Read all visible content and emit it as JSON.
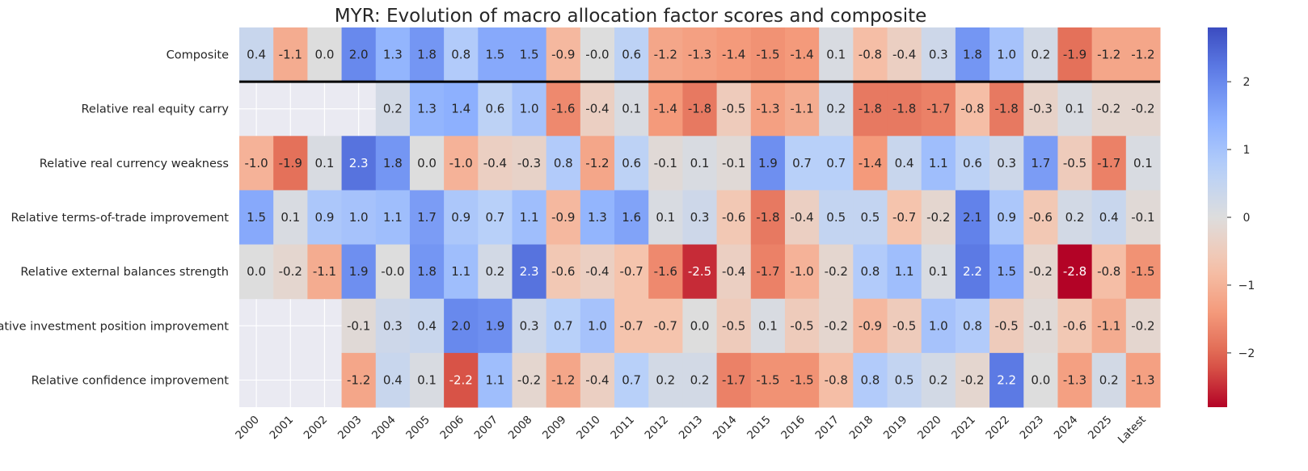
{
  "chart_data": {
    "type": "heatmap",
    "title": "MYR: Evolution of macro allocation factor scores and composite",
    "xlabel": "",
    "ylabel": "",
    "colormap": "coolwarm_r",
    "vmin": -2.8,
    "vmax": 2.8,
    "colorbar_ticks": [
      "2",
      "1",
      "0",
      "−1",
      "−2"
    ],
    "colorbar_tick_values": [
      2,
      1,
      0,
      -1,
      -2
    ],
    "x_categories": [
      "2000",
      "2001",
      "2002",
      "2003",
      "2004",
      "2005",
      "2006",
      "2007",
      "2008",
      "2009",
      "2010",
      "2011",
      "2012",
      "2013",
      "2014",
      "2015",
      "2016",
      "2017",
      "2018",
      "2019",
      "2020",
      "2021",
      "2022",
      "2023",
      "2024",
      "2025",
      "Latest"
    ],
    "rows": [
      {
        "name": "Composite",
        "values": [
          0.4,
          -1.1,
          0.0,
          2.0,
          1.3,
          1.8,
          0.8,
          1.5,
          1.5,
          -0.9,
          -0.0,
          0.6,
          -1.2,
          -1.3,
          -1.4,
          -1.5,
          -1.4,
          0.1,
          -0.8,
          -0.4,
          0.3,
          1.8,
          1.0,
          0.2,
          -1.9,
          -1.2,
          -1.2
        ],
        "labels": [
          "0.4",
          "-1.1",
          "0.0",
          "2.0",
          "1.3",
          "1.8",
          "0.8",
          "1.5",
          "1.5",
          "-0.9",
          "-0.0",
          "0.6",
          "-1.2",
          "-1.3",
          "-1.4",
          "-1.5",
          "-1.4",
          "0.1",
          "-0.8",
          "-0.4",
          "0.3",
          "1.8",
          "1.0",
          "0.2",
          "-1.9",
          "-1.2",
          "-1.2"
        ]
      },
      {
        "name": "Relative real equity carry",
        "values": [
          null,
          null,
          null,
          null,
          0.2,
          1.3,
          1.4,
          0.6,
          1.0,
          -1.6,
          -0.4,
          0.1,
          -1.4,
          -1.8,
          -0.5,
          -1.3,
          -1.1,
          0.2,
          -1.8,
          -1.8,
          -1.7,
          -0.8,
          -1.8,
          -0.3,
          0.1,
          -0.2,
          -0.2
        ],
        "labels": [
          "",
          "",
          "",
          "",
          "0.2",
          "1.3",
          "1.4",
          "0.6",
          "1.0",
          "-1.6",
          "-0.4",
          "0.1",
          "-1.4",
          "-1.8",
          "-0.5",
          "-1.3",
          "-1.1",
          "0.2",
          "-1.8",
          "-1.8",
          "-1.7",
          "-0.8",
          "-1.8",
          "-0.3",
          "0.1",
          "-0.2",
          "-0.2"
        ]
      },
      {
        "name": "Relative real currency weakness",
        "values": [
          -1.0,
          -1.9,
          0.1,
          2.3,
          1.8,
          0.0,
          -1.0,
          -0.4,
          -0.3,
          0.8,
          -1.2,
          0.6,
          -0.1,
          0.1,
          -0.1,
          1.9,
          0.7,
          0.7,
          -1.4,
          0.4,
          1.1,
          0.6,
          0.3,
          1.7,
          -0.5,
          -1.7,
          0.1
        ],
        "labels": [
          "-1.0",
          "-1.9",
          "0.1",
          "2.3",
          "1.8",
          "0.0",
          "-1.0",
          "-0.4",
          "-0.3",
          "0.8",
          "-1.2",
          "0.6",
          "-0.1",
          "0.1",
          "-0.1",
          "1.9",
          "0.7",
          "0.7",
          "-1.4",
          "0.4",
          "1.1",
          "0.6",
          "0.3",
          "1.7",
          "-0.5",
          "-1.7",
          "0.1"
        ]
      },
      {
        "name": "Relative terms-of-trade improvement",
        "values": [
          1.5,
          0.1,
          0.9,
          1.0,
          1.1,
          1.7,
          0.9,
          0.7,
          1.1,
          -0.9,
          1.3,
          1.6,
          0.1,
          0.3,
          -0.6,
          -1.8,
          -0.4,
          0.5,
          0.5,
          -0.7,
          -0.2,
          2.1,
          0.9,
          -0.6,
          0.2,
          0.4,
          -0.1
        ],
        "labels": [
          "1.5",
          "0.1",
          "0.9",
          "1.0",
          "1.1",
          "1.7",
          "0.9",
          "0.7",
          "1.1",
          "-0.9",
          "1.3",
          "1.6",
          "0.1",
          "0.3",
          "-0.6",
          "-1.8",
          "-0.4",
          "0.5",
          "0.5",
          "-0.7",
          "-0.2",
          "2.1",
          "0.9",
          "-0.6",
          "0.2",
          "0.4",
          "-0.1"
        ]
      },
      {
        "name": "Relative external balances strength",
        "values": [
          0.0,
          -0.2,
          -1.1,
          1.9,
          -0.0,
          1.8,
          1.1,
          0.2,
          2.3,
          -0.6,
          -0.4,
          -0.7,
          -1.6,
          -2.5,
          -0.4,
          -1.7,
          -1.0,
          -0.2,
          0.8,
          1.1,
          0.1,
          2.2,
          1.5,
          -0.2,
          -2.8,
          -0.8,
          -1.5
        ],
        "labels": [
          "0.0",
          "-0.2",
          "-1.1",
          "1.9",
          "-0.0",
          "1.8",
          "1.1",
          "0.2",
          "2.3",
          "-0.6",
          "-0.4",
          "-0.7",
          "-1.6",
          "-2.5",
          "-0.4",
          "-1.7",
          "-1.0",
          "-0.2",
          "0.8",
          "1.1",
          "0.1",
          "2.2",
          "1.5",
          "-0.2",
          "-2.8",
          "-0.8",
          "-1.5"
        ]
      },
      {
        "name": "Relative investment position improvement",
        "values": [
          null,
          null,
          null,
          -0.1,
          0.3,
          0.4,
          2.0,
          1.9,
          0.3,
          0.7,
          1.0,
          -0.7,
          -0.7,
          0.0,
          -0.5,
          0.1,
          -0.5,
          -0.2,
          -0.9,
          -0.5,
          1.0,
          0.8,
          -0.5,
          -0.1,
          -0.6,
          -1.1,
          -0.2
        ],
        "labels": [
          "",
          "",
          "",
          "-0.1",
          "0.3",
          "0.4",
          "2.0",
          "1.9",
          "0.3",
          "0.7",
          "1.0",
          "-0.7",
          "-0.7",
          "0.0",
          "-0.5",
          "0.1",
          "-0.5",
          "-0.2",
          "-0.9",
          "-0.5",
          "1.0",
          "0.8",
          "-0.5",
          "-0.1",
          "-0.6",
          "-1.1",
          "-0.2"
        ]
      },
      {
        "name": "Relative confidence improvement",
        "values": [
          null,
          null,
          null,
          -1.2,
          0.4,
          0.1,
          -2.2,
          1.1,
          -0.2,
          -1.2,
          -0.4,
          0.7,
          0.2,
          0.2,
          -1.7,
          -1.5,
          -1.5,
          -0.8,
          0.8,
          0.5,
          0.2,
          -0.2,
          2.2,
          0.0,
          -1.3,
          0.2,
          -1.3
        ],
        "labels": [
          "",
          "",
          "",
          "-1.2",
          "0.4",
          "0.1",
          "-2.2",
          "1.1",
          "-0.2",
          "-1.2",
          "-0.4",
          "0.7",
          "0.2",
          "0.2",
          "-1.7",
          "-1.5",
          "-1.5",
          "-0.8",
          "0.8",
          "0.5",
          "0.2",
          "-0.2",
          "2.2",
          "0.0",
          "-1.3",
          "0.2",
          "-1.3"
        ]
      }
    ],
    "separator_after_row": "Composite",
    "missing_color": "#eaeaf2"
  }
}
